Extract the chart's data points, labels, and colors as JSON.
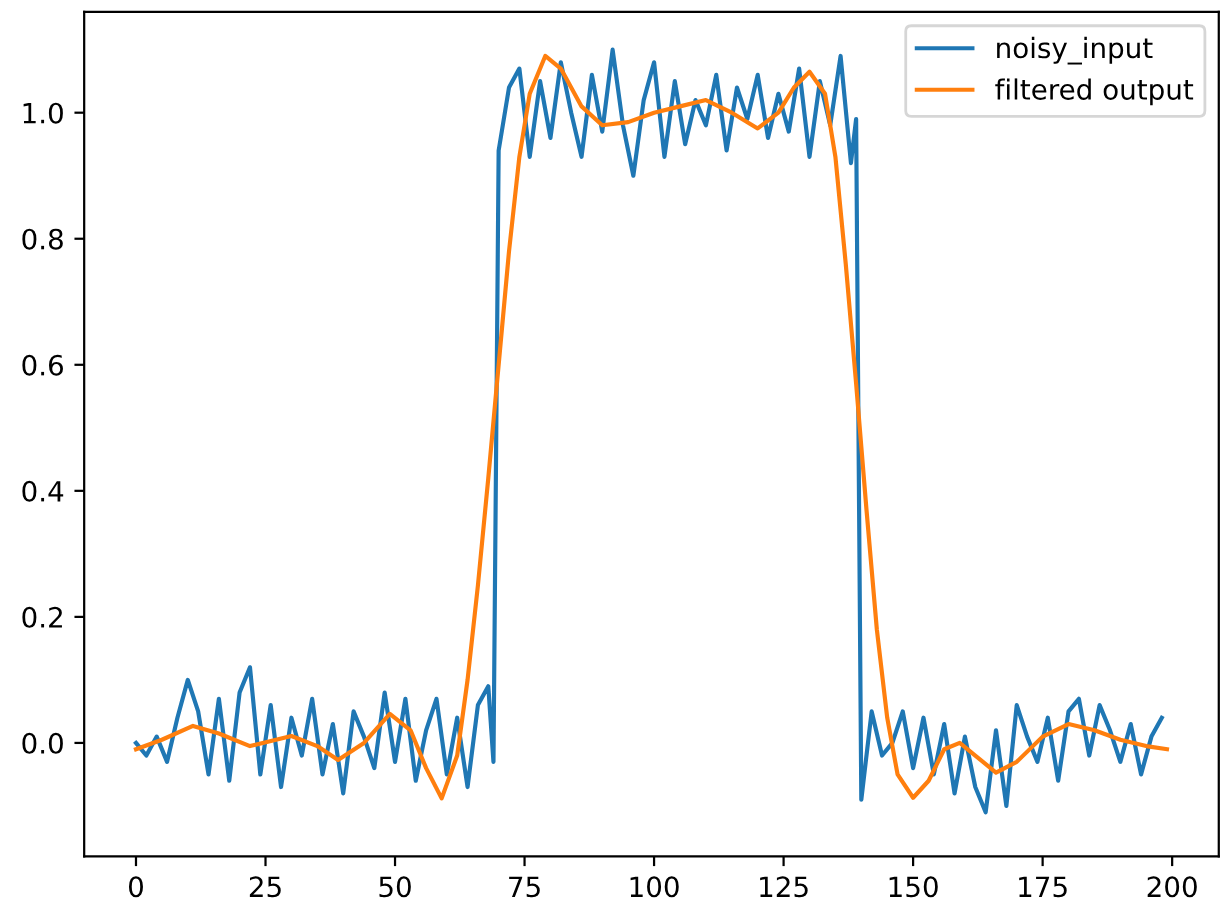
{
  "chart_data": {
    "type": "line",
    "xlim": [
      -10,
      209
    ],
    "ylim": [
      -0.18,
      1.16
    ],
    "xticks": [
      0,
      25,
      50,
      75,
      100,
      125,
      150,
      175,
      200
    ],
    "yticks": [
      {
        "value": 0,
        "label": "0.0"
      },
      {
        "value": 0.2,
        "label": "0.2"
      },
      {
        "value": 0.4,
        "label": "0.4"
      },
      {
        "value": 0.6,
        "label": "0.6"
      },
      {
        "value": 0.8,
        "label": "0.8"
      },
      {
        "value": 1.0,
        "label": "1.0"
      }
    ],
    "legend": "top right",
    "grid": false,
    "series": [
      {
        "name": "noisy_input",
        "color": "#1f77b4",
        "x": [
          0,
          2,
          4,
          6,
          8,
          10,
          12,
          14,
          16,
          18,
          20,
          22,
          24,
          26,
          28,
          30,
          32,
          34,
          36,
          38,
          40,
          42,
          44,
          46,
          48,
          50,
          52,
          54,
          56,
          58,
          60,
          62,
          64,
          66,
          68,
          69,
          70,
          72,
          74,
          76,
          78,
          80,
          82,
          84,
          86,
          88,
          90,
          92,
          94,
          96,
          98,
          100,
          102,
          104,
          106,
          108,
          110,
          112,
          114,
          116,
          118,
          120,
          122,
          124,
          126,
          128,
          130,
          132,
          134,
          136,
          138,
          139,
          140,
          142,
          144,
          146,
          148,
          150,
          152,
          154,
          156,
          158,
          160,
          162,
          164,
          166,
          168,
          170,
          172,
          174,
          176,
          178,
          180,
          182,
          184,
          186,
          188,
          190,
          192,
          194,
          196,
          198
        ],
        "values": [
          0.0,
          -0.02,
          0.01,
          -0.03,
          0.04,
          0.1,
          0.05,
          -0.05,
          0.07,
          -0.06,
          0.08,
          0.12,
          -0.05,
          0.06,
          -0.07,
          0.04,
          -0.02,
          0.07,
          -0.05,
          0.03,
          -0.08,
          0.05,
          0.01,
          -0.04,
          0.08,
          -0.03,
          0.07,
          -0.06,
          0.02,
          0.07,
          -0.05,
          0.04,
          -0.07,
          0.06,
          0.09,
          -0.03,
          0.94,
          1.04,
          1.07,
          0.93,
          1.05,
          0.96,
          1.08,
          1.0,
          0.93,
          1.06,
          0.97,
          1.1,
          0.98,
          0.9,
          1.02,
          1.08,
          0.93,
          1.05,
          0.95,
          1.02,
          0.98,
          1.06,
          0.94,
          1.04,
          0.99,
          1.06,
          0.96,
          1.03,
          0.97,
          1.07,
          0.93,
          1.05,
          0.98,
          1.09,
          0.92,
          0.99,
          -0.09,
          0.05,
          -0.02,
          0.0,
          0.05,
          -0.04,
          0.04,
          -0.05,
          0.03,
          -0.08,
          0.01,
          -0.07,
          -0.11,
          0.02,
          -0.1,
          0.06,
          0.01,
          -0.03,
          0.04,
          -0.06,
          0.05,
          0.07,
          -0.02,
          0.06,
          0.02,
          -0.03,
          0.03,
          -0.05,
          0.01,
          0.04
        ]
      },
      {
        "name": "filtered output",
        "color": "#ff7f0e",
        "x": [
          0,
          5,
          11,
          16,
          22,
          30,
          35,
          39,
          44,
          49,
          53,
          56,
          59,
          62,
          64,
          66,
          68,
          70,
          72,
          74,
          76,
          79,
          82,
          86,
          90,
          95,
          100,
          105,
          110,
          115,
          120,
          124,
          127,
          130,
          133,
          135,
          137,
          139,
          141,
          143,
          145,
          147,
          150,
          153,
          156,
          159,
          162,
          166,
          170,
          175,
          180,
          185,
          190,
          195,
          199
        ],
        "values": [
          -0.01,
          0.005,
          0.027,
          0.015,
          -0.005,
          0.011,
          -0.005,
          -0.027,
          0.0,
          0.046,
          0.02,
          -0.04,
          -0.088,
          -0.02,
          0.1,
          0.25,
          0.42,
          0.6,
          0.78,
          0.93,
          1.03,
          1.09,
          1.07,
          1.01,
          0.98,
          0.985,
          1.0,
          1.01,
          1.02,
          1.0,
          0.975,
          1.0,
          1.04,
          1.065,
          1.03,
          0.93,
          0.76,
          0.57,
          0.37,
          0.18,
          0.04,
          -0.05,
          -0.087,
          -0.06,
          -0.01,
          0.0,
          -0.02,
          -0.047,
          -0.03,
          0.01,
          0.03,
          0.02,
          0.005,
          -0.005,
          -0.01
        ]
      }
    ]
  }
}
